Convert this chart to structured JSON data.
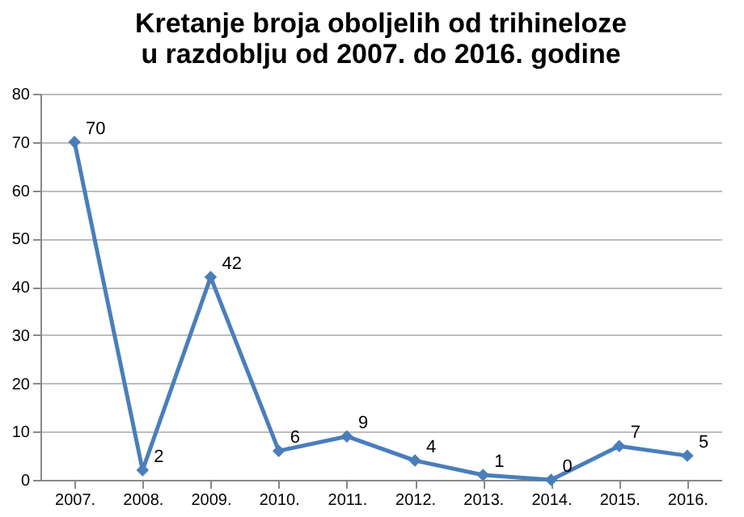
{
  "chart_data": {
    "type": "line",
    "title": "Kretanje broja oboljelih od trihineloze\nu razdoblju od 2007. do 2016. godine",
    "categories": [
      "2007.",
      "2008.",
      "2009.",
      "2010.",
      "2011.",
      "2012.",
      "2013.",
      "2014.",
      "2015.",
      "2016."
    ],
    "series": [
      {
        "color": "#4a7ebb",
        "values": [
          70,
          2,
          42,
          6,
          9,
          4,
          1,
          0,
          7,
          5
        ]
      }
    ],
    "ylim": [
      0,
      80
    ],
    "yticks": [
      0,
      10,
      20,
      30,
      40,
      50,
      60,
      70,
      80
    ],
    "grid": "y",
    "marker": "diamond",
    "line_style": "solid",
    "data_labels": true,
    "legend": false
  }
}
